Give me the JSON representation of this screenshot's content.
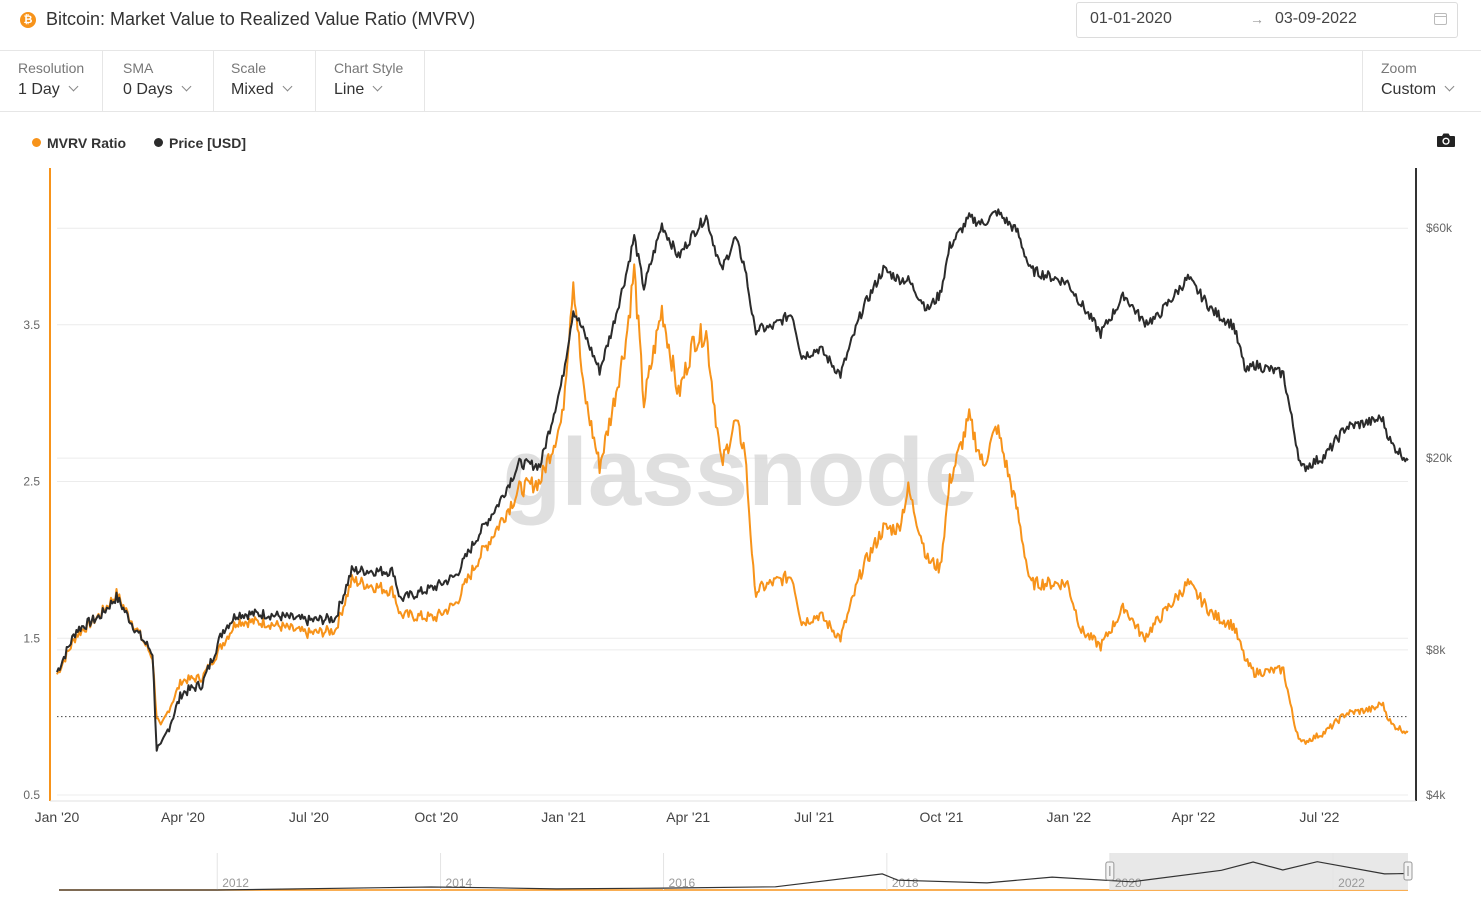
{
  "header": {
    "coin_icon": "bitcoin-icon",
    "coin_symbol": "₿",
    "title": "Bitcoin: Market Value to Realized Value Ratio (MVRV)",
    "date_from": "01-01-2020",
    "date_to": "03-09-2022",
    "arrow": "→"
  },
  "controls": [
    {
      "label": "Resolution",
      "value": "1 Day"
    },
    {
      "label": "SMA",
      "value": "0 Days"
    },
    {
      "label": "Scale",
      "value": "Mixed"
    },
    {
      "label": "Chart Style",
      "value": "Line"
    }
  ],
  "zoom": {
    "label": "Zoom",
    "value": "Custom"
  },
  "colors": {
    "mvrv": "#f7931a",
    "price": "#2b2b2b",
    "grid": "#ececec"
  },
  "chart_data": {
    "type": "line",
    "watermark": "glassnode",
    "x_ticks": [
      "Jan '20",
      "Apr '20",
      "Jul '20",
      "Oct '20",
      "Jan '21",
      "Apr '21",
      "Jul '21",
      "Oct '21",
      "Jan '22",
      "Apr '22",
      "Jul '22"
    ],
    "left_axis": {
      "ticks": [
        "0.5",
        "1.5",
        "2.5",
        "3.5"
      ],
      "ylim": [
        0.5,
        4.5
      ],
      "scale": "linear"
    },
    "right_axis": {
      "ticks": [
        "$4k",
        "$8k",
        "$20k",
        "$60k"
      ],
      "ylim": [
        4000,
        80000
      ],
      "scale": "log"
    },
    "reference_line": {
      "axis": "left",
      "value": 1.0,
      "style": "dotted"
    },
    "series": [
      {
        "name": "MVRV Ratio",
        "axis": "left",
        "points": [
          [
            "2020-01-01",
            1.27
          ],
          [
            "2020-01-15",
            1.52
          ],
          [
            "2020-02-01",
            1.65
          ],
          [
            "2020-02-13",
            1.78
          ],
          [
            "2020-02-28",
            1.55
          ],
          [
            "2020-03-10",
            1.38
          ],
          [
            "2020-03-13",
            1.0
          ],
          [
            "2020-03-16",
            0.93
          ],
          [
            "2020-03-31",
            1.23
          ],
          [
            "2020-04-15",
            1.25
          ],
          [
            "2020-04-30",
            1.47
          ],
          [
            "2020-05-10",
            1.61
          ],
          [
            "2020-05-31",
            1.6
          ],
          [
            "2020-06-30",
            1.53
          ],
          [
            "2020-07-20",
            1.55
          ],
          [
            "2020-08-01",
            1.87
          ],
          [
            "2020-08-31",
            1.8
          ],
          [
            "2020-09-05",
            1.65
          ],
          [
            "2020-09-30",
            1.63
          ],
          [
            "2020-10-15",
            1.72
          ],
          [
            "2020-10-31",
            2.0
          ],
          [
            "2020-11-15",
            2.22
          ],
          [
            "2020-11-30",
            2.45
          ],
          [
            "2020-12-15",
            2.5
          ],
          [
            "2020-12-31",
            2.9
          ],
          [
            "2021-01-08",
            3.8
          ],
          [
            "2021-01-15",
            3.1
          ],
          [
            "2021-01-27",
            2.6
          ],
          [
            "2021-02-05",
            2.95
          ],
          [
            "2021-02-15",
            3.4
          ],
          [
            "2021-02-21",
            3.85
          ],
          [
            "2021-02-28",
            3.0
          ],
          [
            "2021-03-13",
            3.6
          ],
          [
            "2021-03-25",
            3.05
          ],
          [
            "2021-04-05",
            3.4
          ],
          [
            "2021-04-14",
            3.45
          ],
          [
            "2021-04-25",
            2.6
          ],
          [
            "2021-05-05",
            2.88
          ],
          [
            "2021-05-12",
            2.7
          ],
          [
            "2021-05-19",
            1.8
          ],
          [
            "2021-05-31",
            1.85
          ],
          [
            "2021-06-15",
            1.9
          ],
          [
            "2021-06-22",
            1.6
          ],
          [
            "2021-07-05",
            1.65
          ],
          [
            "2021-07-20",
            1.5
          ],
          [
            "2021-08-05",
            1.95
          ],
          [
            "2021-08-20",
            2.2
          ],
          [
            "2021-08-31",
            2.2
          ],
          [
            "2021-09-07",
            2.45
          ],
          [
            "2021-09-21",
            2.0
          ],
          [
            "2021-09-30",
            1.95
          ],
          [
            "2021-10-07",
            2.5
          ],
          [
            "2021-10-21",
            2.9
          ],
          [
            "2021-10-31",
            2.6
          ],
          [
            "2021-11-10",
            2.85
          ],
          [
            "2021-11-25",
            2.3
          ],
          [
            "2021-12-04",
            1.85
          ],
          [
            "2021-12-31",
            1.85
          ],
          [
            "2022-01-10",
            1.55
          ],
          [
            "2022-01-24",
            1.45
          ],
          [
            "2022-02-10",
            1.7
          ],
          [
            "2022-02-24",
            1.5
          ],
          [
            "2022-03-05",
            1.6
          ],
          [
            "2022-03-28",
            1.85
          ],
          [
            "2022-04-15",
            1.65
          ],
          [
            "2022-04-30",
            1.58
          ],
          [
            "2022-05-09",
            1.35
          ],
          [
            "2022-05-15",
            1.28
          ],
          [
            "2022-06-05",
            1.3
          ],
          [
            "2022-06-13",
            0.95
          ],
          [
            "2022-06-18",
            0.83
          ],
          [
            "2022-07-05",
            0.9
          ],
          [
            "2022-07-20",
            1.02
          ],
          [
            "2022-08-10",
            1.05
          ],
          [
            "2022-08-15",
            1.09
          ],
          [
            "2022-08-22",
            0.95
          ],
          [
            "2022-09-03",
            0.9
          ]
        ]
      },
      {
        "name": "Price [USD]",
        "axis": "right",
        "points": [
          [
            "2020-01-01",
            7200
          ],
          [
            "2020-01-15",
            8800
          ],
          [
            "2020-02-01",
            9400
          ],
          [
            "2020-02-13",
            10300
          ],
          [
            "2020-02-28",
            8700
          ],
          [
            "2020-03-10",
            7900
          ],
          [
            "2020-03-13",
            5000
          ],
          [
            "2020-03-16",
            5000
          ],
          [
            "2020-03-31",
            6500
          ],
          [
            "2020-04-15",
            6800
          ],
          [
            "2020-04-30",
            8800
          ],
          [
            "2020-05-10",
            9500
          ],
          [
            "2020-05-31",
            9500
          ],
          [
            "2020-06-30",
            9200
          ],
          [
            "2020-07-20",
            9300
          ],
          [
            "2020-08-01",
            11700
          ],
          [
            "2020-08-31",
            11650
          ],
          [
            "2020-09-05",
            10200
          ],
          [
            "2020-09-30",
            10800
          ],
          [
            "2020-10-15",
            11400
          ],
          [
            "2020-10-31",
            13800
          ],
          [
            "2020-11-15",
            16100
          ],
          [
            "2020-11-30",
            19500
          ],
          [
            "2020-12-15",
            19300
          ],
          [
            "2020-12-31",
            29000
          ],
          [
            "2021-01-08",
            40700
          ],
          [
            "2021-01-15",
            36800
          ],
          [
            "2021-01-27",
            30400
          ],
          [
            "2021-02-05",
            37000
          ],
          [
            "2021-02-15",
            48000
          ],
          [
            "2021-02-21",
            57500
          ],
          [
            "2021-02-28",
            45200
          ],
          [
            "2021-03-13",
            61000
          ],
          [
            "2021-03-25",
            52300
          ],
          [
            "2021-04-05",
            58700
          ],
          [
            "2021-04-14",
            63500
          ],
          [
            "2021-04-25",
            49000
          ],
          [
            "2021-05-05",
            57300
          ],
          [
            "2021-05-12",
            49700
          ],
          [
            "2021-05-19",
            37000
          ],
          [
            "2021-05-31",
            37300
          ],
          [
            "2021-06-15",
            40000
          ],
          [
            "2021-06-22",
            32500
          ],
          [
            "2021-07-05",
            33800
          ],
          [
            "2021-07-20",
            29800
          ],
          [
            "2021-08-05",
            40800
          ],
          [
            "2021-08-20",
            49300
          ],
          [
            "2021-08-31",
            47100
          ],
          [
            "2021-09-07",
            46800
          ],
          [
            "2021-09-21",
            40700
          ],
          [
            "2021-09-30",
            43800
          ],
          [
            "2021-10-07",
            55000
          ],
          [
            "2021-10-21",
            63000
          ],
          [
            "2021-10-31",
            61300
          ],
          [
            "2021-11-10",
            64900
          ],
          [
            "2021-11-25",
            58900
          ],
          [
            "2021-12-04",
            49200
          ],
          [
            "2021-12-31",
            46300
          ],
          [
            "2022-01-10",
            41800
          ],
          [
            "2022-01-24",
            36300
          ],
          [
            "2022-02-10",
            43600
          ],
          [
            "2022-02-24",
            38300
          ],
          [
            "2022-03-05",
            39000
          ],
          [
            "2022-03-28",
            47300
          ],
          [
            "2022-04-15",
            40400
          ],
          [
            "2022-04-30",
            37700
          ],
          [
            "2022-05-09",
            30100
          ],
          [
            "2022-05-15",
            31300
          ],
          [
            "2022-06-05",
            29900
          ],
          [
            "2022-06-13",
            22500
          ],
          [
            "2022-06-18",
            19000
          ],
          [
            "2022-07-05",
            20200
          ],
          [
            "2022-07-20",
            23200
          ],
          [
            "2022-08-10",
            23900
          ],
          [
            "2022-08-15",
            24300
          ],
          [
            "2022-08-22",
            21400
          ],
          [
            "2022-09-03",
            19800
          ]
        ]
      }
    ],
    "navigator": {
      "year_labels": [
        "2012",
        "2014",
        "2016",
        "2018",
        "2020",
        "2022"
      ],
      "selected_range": [
        "2020-01-01",
        "2022-09-03"
      ],
      "history_points": [
        [
          "2010-08-01",
          0.07
        ],
        [
          "2012-01-01",
          5
        ],
        [
          "2013-12-01",
          900
        ],
        [
          "2014-06-01",
          600
        ],
        [
          "2015-01-15",
          200
        ],
        [
          "2016-01-01",
          430
        ],
        [
          "2017-01-01",
          1000
        ],
        [
          "2017-12-17",
          19000
        ],
        [
          "2018-02-06",
          7000
        ],
        [
          "2018-11-25",
          3800
        ],
        [
          "2019-06-26",
          12000
        ],
        [
          "2020-03-13",
          5000
        ],
        [
          "2020-12-31",
          29000
        ],
        [
          "2021-04-14",
          63500
        ],
        [
          "2021-07-20",
          29800
        ],
        [
          "2021-11-10",
          64900
        ],
        [
          "2022-06-18",
          19000
        ],
        [
          "2022-09-03",
          19800
        ]
      ]
    }
  }
}
